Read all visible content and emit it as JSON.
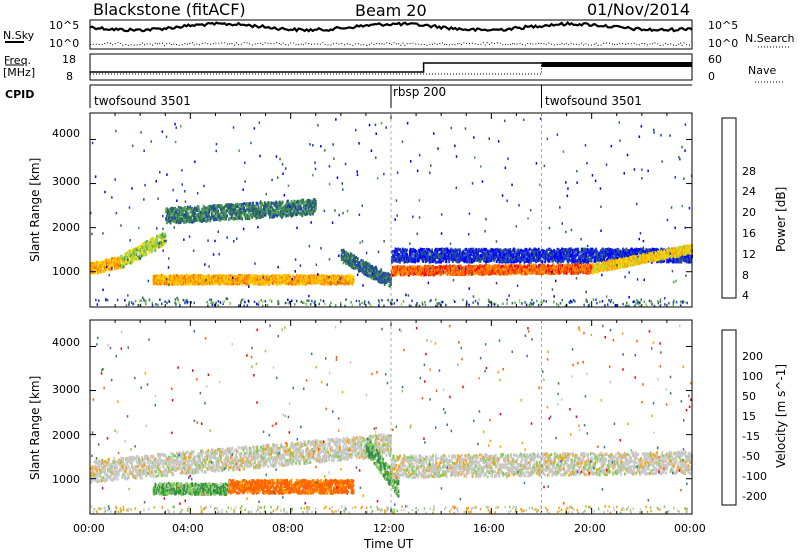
{
  "header": {
    "station": "Blackstone (fitACF)",
    "beam": "Beam 20",
    "date": "01/Nov/2014"
  },
  "top_panels": {
    "nsky_label": "N.Sky",
    "nsearch_label": "N.Search",
    "noise_ticks": [
      "10^5",
      "10^0"
    ],
    "freq_label": "Freq.",
    "freq_unit": "[MHz]",
    "freq_ticks": [
      "18",
      "8"
    ],
    "nave_label": "Nave",
    "nave_ticks": [
      "60",
      "0"
    ],
    "cpid_label": "CPID",
    "cpid_segments": [
      {
        "label": "twofsound 3501",
        "start_h": 0,
        "end_h": 12
      },
      {
        "label": "rbsp 200",
        "start_h": 12,
        "end_h": 18
      },
      {
        "label": "twofsound 3501",
        "start_h": 18,
        "end_h": 24
      }
    ]
  },
  "x_axis": {
    "label": "Time UT",
    "ticks": [
      "00:00",
      "04:00",
      "08:00",
      "12:00",
      "16:00",
      "20:00",
      "00:00"
    ]
  },
  "chart_data": [
    {
      "type": "heatmap",
      "title": "",
      "xlabel": "Time UT",
      "ylabel": "Slant Range [km]",
      "ylim": [
        200,
        4600
      ],
      "yticks": [
        "1000",
        "2000",
        "3000",
        "4000"
      ],
      "colorbar_label": "Power [dB]",
      "colorbar_ticks": [
        "4",
        "8",
        "12",
        "16",
        "20",
        "24",
        "28"
      ],
      "colorbar_colors": [
        "#0000ff",
        "#1f3fbf",
        "#2f6f4f",
        "#4fa04f",
        "#9fd84f",
        "#ffd700",
        "#ffa500",
        "#ff6000",
        "#ff0000"
      ],
      "bands": [
        {
          "start_h": 0,
          "end_h": 1.2,
          "range_center": [
            1100,
            1250
          ],
          "width": 250,
          "power_db": 24
        },
        {
          "start_h": 1.2,
          "end_h": 3,
          "range_center": [
            1250,
            1800
          ],
          "width": 300,
          "power_db": 18
        },
        {
          "start_h": 3,
          "end_h": 9,
          "range_center": [
            2300,
            2500
          ],
          "width": 350,
          "power_db": 11
        },
        {
          "start_h": 2.5,
          "end_h": 10.5,
          "range_center": [
            850,
            850
          ],
          "width": 200,
          "power_db": 24
        },
        {
          "start_h": 10,
          "end_h": 12,
          "range_center": [
            1400,
            800
          ],
          "width": 300,
          "power_db": 10
        },
        {
          "start_h": 12,
          "end_h": 20,
          "range_center": [
            1050,
            1100
          ],
          "width": 200,
          "power_db": 28
        },
        {
          "start_h": 12,
          "end_h": 24,
          "range_center": [
            1400,
            1400
          ],
          "width": 300,
          "power_db": 6
        },
        {
          "start_h": 20,
          "end_h": 24,
          "range_center": [
            1100,
            1550
          ],
          "width": 200,
          "power_db": 22
        }
      ]
    },
    {
      "type": "heatmap",
      "title": "",
      "xlabel": "Time UT",
      "ylabel": "Slant Range [km]",
      "ylim": [
        200,
        4600
      ],
      "yticks": [
        "1000",
        "2000",
        "3000",
        "4000"
      ],
      "colorbar_label": "Velocity [m s^-1]",
      "colorbar_ticks": [
        "200",
        "100",
        "50",
        "15",
        "-15",
        "-50",
        "-100",
        "-200"
      ],
      "colorbar_colors": [
        "#2030c0",
        "#3c70b0",
        "#2f8f3f",
        "#7fd04f",
        "#c8c8c8",
        "#ffa000",
        "#ff6000",
        "#ff0000"
      ],
      "bands": [
        {
          "start_h": 0,
          "end_h": 12,
          "range_center": [
            1200,
            1800
          ],
          "width": 500,
          "velocity": 0
        },
        {
          "start_h": 2.5,
          "end_h": 5.5,
          "range_center": [
            800,
            800
          ],
          "width": 250,
          "velocity": 30
        },
        {
          "start_h": 5.5,
          "end_h": 10.5,
          "range_center": [
            850,
            850
          ],
          "width": 300,
          "velocity": -60
        },
        {
          "start_h": 11,
          "end_h": 12.3,
          "range_center": [
            1800,
            800
          ],
          "width": 400,
          "velocity": 30
        },
        {
          "start_h": 12,
          "end_h": 24,
          "range_center": [
            1300,
            1400
          ],
          "width": 500,
          "velocity": 0
        }
      ]
    }
  ]
}
